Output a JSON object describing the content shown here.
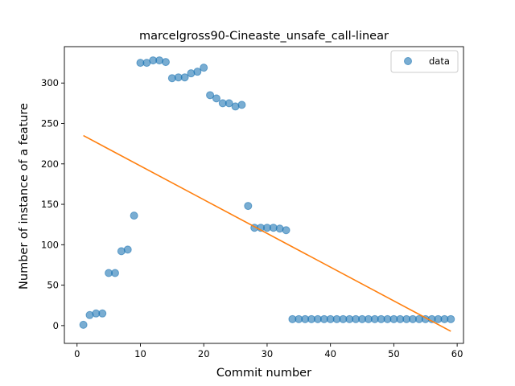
{
  "chart_data": {
    "type": "scatter",
    "title": "marcelgross90-Cineaste_unsafe_call-linear",
    "xlabel": "Commit number",
    "ylabel": "Number of instance of a feature",
    "xlim": [
      -2,
      61
    ],
    "ylim": [
      -22,
      345
    ],
    "xticks": [
      0,
      10,
      20,
      30,
      40,
      50,
      60
    ],
    "yticks": [
      0,
      50,
      100,
      150,
      200,
      250,
      300
    ],
    "legend_position": "top-right",
    "grid": false,
    "series": [
      {
        "name": "data",
        "kind": "scatter",
        "color": "#1f77b4",
        "x": [
          1,
          2,
          3,
          4,
          5,
          6,
          7,
          8,
          9,
          10,
          11,
          12,
          13,
          14,
          15,
          16,
          17,
          18,
          19,
          20,
          21,
          22,
          23,
          24,
          25,
          26,
          27,
          28,
          29,
          30,
          31,
          32,
          33,
          34,
          35,
          36,
          37,
          38,
          39,
          40,
          41,
          42,
          43,
          44,
          45,
          46,
          47,
          48,
          49,
          50,
          51,
          52,
          53,
          54,
          55,
          56,
          57,
          58,
          59
        ],
        "y": [
          1,
          13,
          15,
          15,
          65,
          65,
          92,
          94,
          136,
          325,
          325,
          328,
          328,
          326,
          306,
          307,
          307,
          312,
          314,
          319,
          285,
          281,
          275,
          275,
          271,
          273,
          148,
          121,
          121,
          121,
          121,
          120,
          118,
          8,
          8,
          8,
          8,
          8,
          8,
          8,
          8,
          8,
          8,
          8,
          8,
          8,
          8,
          8,
          8,
          8,
          8,
          8,
          8,
          8,
          8,
          8,
          8,
          8,
          8
        ]
      },
      {
        "kind": "line",
        "color": "#ff7f0e",
        "x": [
          1,
          59
        ],
        "y": [
          235,
          -7
        ]
      }
    ]
  }
}
